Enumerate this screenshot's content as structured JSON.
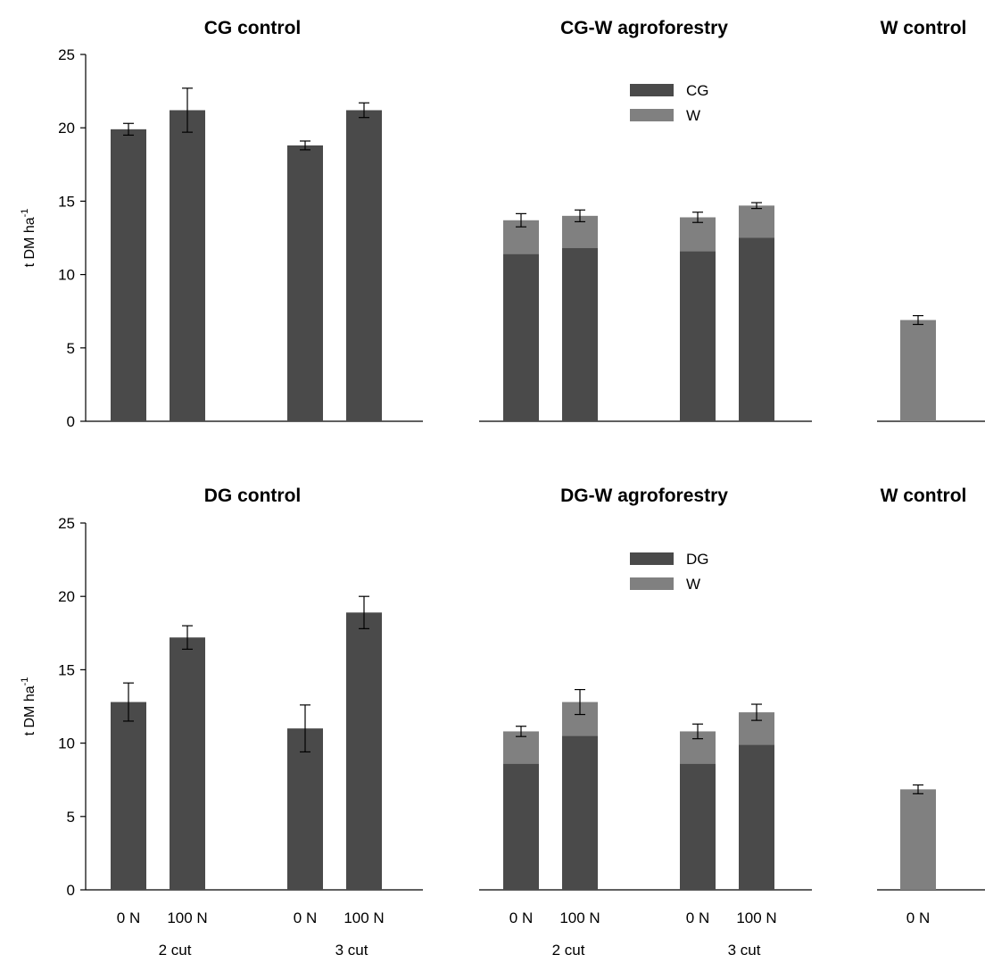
{
  "colors": {
    "grass": "#4a4a4a",
    "willow": "#808080",
    "axis": "#000000"
  },
  "y_axis_label": {
    "main": "t DM ha",
    "sup": "-1"
  },
  "chart_data": [
    {
      "type": "bar",
      "title": "CG control",
      "categories": [
        "0 N",
        "100 N",
        "0 N",
        "100 N"
      ],
      "groups": [
        "2 cut",
        "3 cut"
      ],
      "series": [
        {
          "values": [
            19.9,
            21.2,
            18.8,
            21.2
          ],
          "errors": [
            0.4,
            1.5,
            0.3,
            0.5
          ]
        }
      ],
      "ylim": [
        0,
        25
      ]
    },
    {
      "type": "bar",
      "stacked": true,
      "title": "CG-W agroforestry",
      "categories": [
        "0 N",
        "100 N",
        "0 N",
        "100 N"
      ],
      "groups": [
        "2 cut",
        "3 cut"
      ],
      "series": [
        {
          "name": "CG",
          "values": [
            11.4,
            11.8,
            11.6,
            12.5
          ]
        },
        {
          "name": "W",
          "values": [
            2.3,
            2.2,
            2.3,
            2.2
          ]
        }
      ],
      "errors": [
        0.45,
        0.4,
        0.35,
        0.2
      ],
      "ylim": [
        0,
        25
      ]
    },
    {
      "type": "bar",
      "title": "W control",
      "categories": [
        "0 N"
      ],
      "series": [
        {
          "values": [
            6.9
          ],
          "errors": [
            0.3
          ]
        }
      ],
      "ylim": [
        0,
        25
      ]
    },
    {
      "type": "bar",
      "title": "DG control",
      "categories": [
        "0 N",
        "100 N",
        "0 N",
        "100 N"
      ],
      "groups": [
        "2 cut",
        "3 cut"
      ],
      "series": [
        {
          "values": [
            12.8,
            17.2,
            11.0,
            18.9
          ],
          "errors": [
            1.3,
            0.8,
            1.6,
            1.1
          ]
        }
      ],
      "ylim": [
        0,
        25
      ]
    },
    {
      "type": "bar",
      "stacked": true,
      "title": "DG-W agroforestry",
      "categories": [
        "0 N",
        "100 N",
        "0 N",
        "100 N"
      ],
      "groups": [
        "2 cut",
        "3 cut"
      ],
      "series": [
        {
          "name": "DG",
          "values": [
            8.6,
            10.5,
            8.6,
            9.9
          ]
        },
        {
          "name": "W",
          "values": [
            2.2,
            2.3,
            2.2,
            2.2
          ]
        }
      ],
      "errors": [
        0.35,
        0.85,
        0.5,
        0.55
      ],
      "ylim": [
        0,
        25
      ]
    },
    {
      "type": "bar",
      "title": "W control",
      "categories": [
        "0 N"
      ],
      "series": [
        {
          "values": [
            6.85
          ],
          "errors": [
            0.3
          ]
        }
      ],
      "ylim": [
        0,
        25
      ]
    }
  ]
}
